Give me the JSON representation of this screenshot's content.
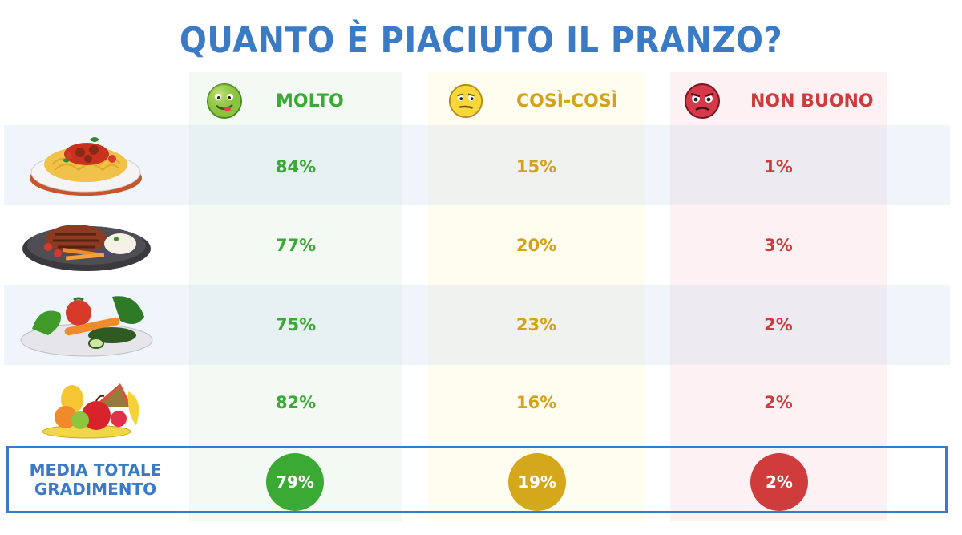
{
  "title": "QUANTO È PIACIUTO IL PRANZO?",
  "colors": {
    "title": "#3b7bc6",
    "molto": "#3aaa35",
    "cosi": "#d4a21a",
    "non_buono": "#cc3c3c"
  },
  "columns": [
    {
      "label": "MOLTO",
      "icon": "happy-face-icon"
    },
    {
      "label": "COSÌ-COSÌ",
      "icon": "meh-face-icon"
    },
    {
      "label": "NON BUONO",
      "icon": "disgusted-face-icon"
    }
  ],
  "rows": [
    {
      "icon": "spaghetti-dish-icon",
      "values": [
        "84%",
        "15%",
        "1%"
      ]
    },
    {
      "icon": "steak-plate-icon",
      "values": [
        "77%",
        "20%",
        "3%"
      ]
    },
    {
      "icon": "vegetables-plate-icon",
      "values": [
        "75%",
        "23%",
        "2%"
      ]
    },
    {
      "icon": "fruit-basket-icon",
      "values": [
        "82%",
        "16%",
        "2%"
      ]
    }
  ],
  "average": {
    "label_line1": "MEDIA TOTALE",
    "label_line2": "GRADIMENTO",
    "values": [
      "79%",
      "19%",
      "2%"
    ]
  },
  "chart_data": {
    "type": "table",
    "title": "QUANTO È PIACIUTO IL PRANZO?",
    "columns": [
      "MOLTO",
      "COSÌ-COSÌ",
      "NON BUONO"
    ],
    "rows": [
      {
        "values": [
          84,
          15,
          1
        ]
      },
      {
        "values": [
          77,
          20,
          3
        ]
      },
      {
        "values": [
          75,
          23,
          2
        ]
      },
      {
        "values": [
          82,
          16,
          2
        ]
      }
    ],
    "average": {
      "label": "MEDIA TOTALE GRADIMENTO",
      "values": [
        79,
        19,
        2
      ]
    }
  }
}
